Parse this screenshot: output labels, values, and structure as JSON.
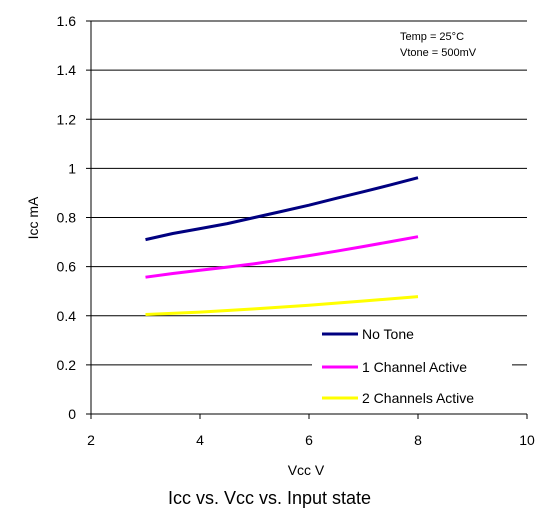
{
  "caption": "Icc vs. Vcc vs. Input state",
  "annotation": [
    "Temp = 25°C",
    "Vtone = 500mV"
  ],
  "chart_data": {
    "type": "line",
    "xlabel": "Vcc V",
    "ylabel": "Icc mA",
    "xlim": [
      2,
      10
    ],
    "ylim": [
      0,
      1.6
    ],
    "xticks": [
      "2",
      "4",
      "6",
      "8",
      "10"
    ],
    "yticks": [
      "0",
      "0.2",
      "0.4",
      "0.6",
      "0.8",
      "1",
      "1.2",
      "1.4",
      "1.6"
    ],
    "grid": "horizontal",
    "legend_position": "bottom-right",
    "series": [
      {
        "name": "No Tone",
        "color": "#000080",
        "x": [
          3,
          3.5,
          4,
          4.5,
          5,
          5.5,
          6,
          6.5,
          7,
          7.5,
          8
        ],
        "y": [
          0.71,
          0.735,
          0.755,
          0.775,
          0.8,
          0.825,
          0.85,
          0.878,
          0.905,
          0.933,
          0.962
        ]
      },
      {
        "name": "1 Channel Active",
        "color": "#FF00FF",
        "x": [
          3,
          3.5,
          4,
          4.5,
          5,
          5.5,
          6,
          6.5,
          7,
          7.5,
          8
        ],
        "y": [
          0.557,
          0.572,
          0.585,
          0.598,
          0.612,
          0.628,
          0.645,
          0.663,
          0.682,
          0.702,
          0.722
        ]
      },
      {
        "name": "2 Channels Active",
        "color": "#FFFF00",
        "x": [
          3,
          4,
          5,
          6,
          7,
          8
        ],
        "y": [
          0.405,
          0.415,
          0.428,
          0.443,
          0.46,
          0.478
        ]
      }
    ]
  }
}
